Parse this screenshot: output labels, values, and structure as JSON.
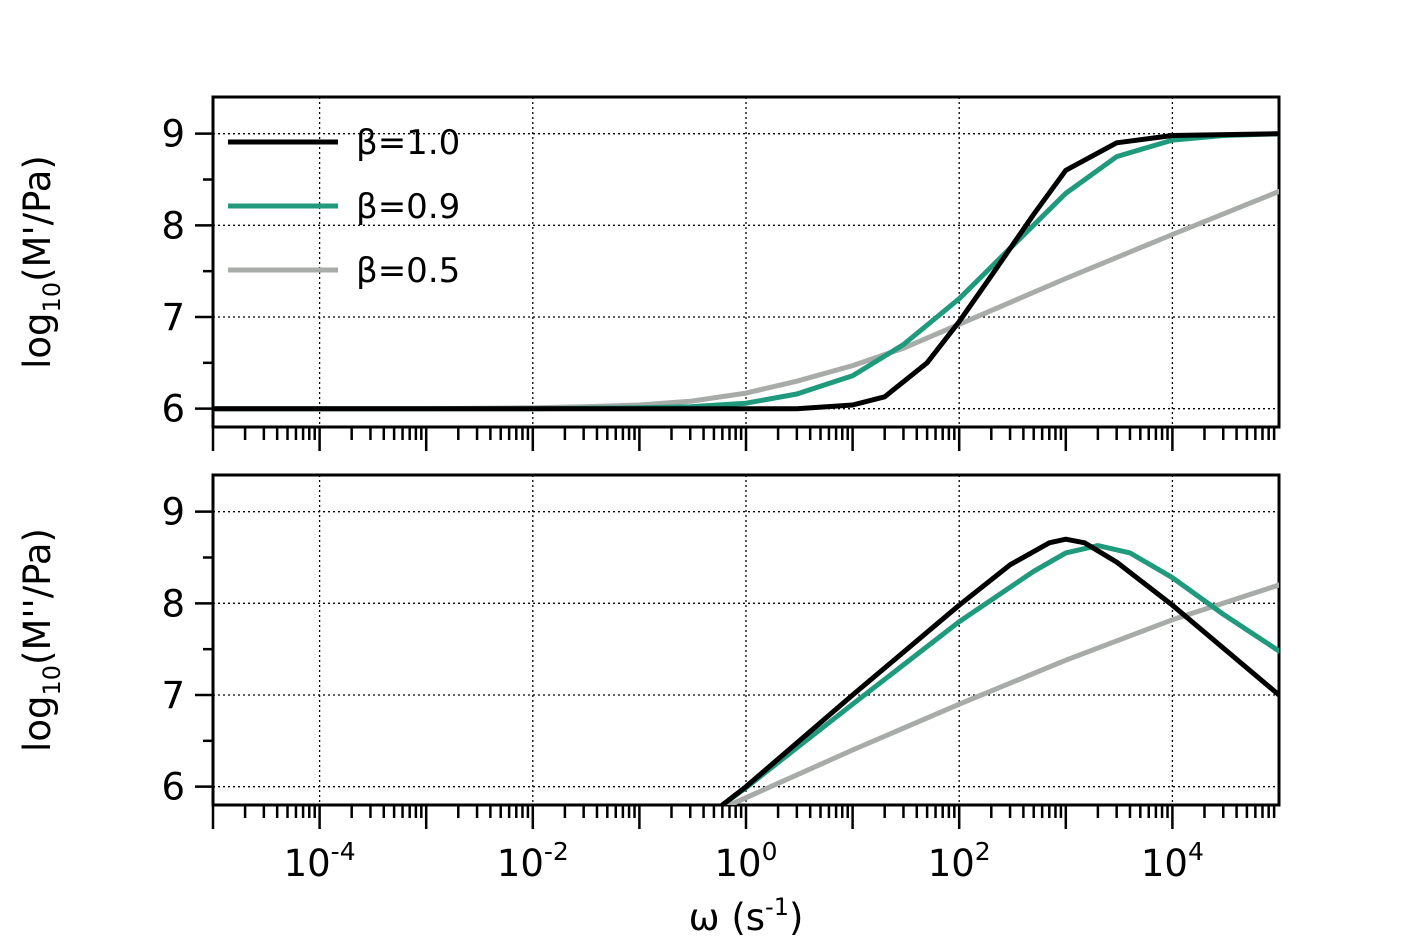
{
  "chart_data": [
    {
      "type": "line",
      "panel": "top",
      "ylabel": {
        "base": "log",
        "sub": "10",
        "rest": "(M'/Pa)"
      },
      "x_scale": "log",
      "xlim": [
        1e-05,
        100000.0
      ],
      "ylim": [
        5.8,
        9.4
      ],
      "y_ticks": [
        6,
        7,
        8,
        9
      ],
      "grid": true,
      "legend_position": "top-left",
      "series": [
        {
          "name": "β=1.0",
          "color": "#000000",
          "x": [
            1e-05,
            0.01,
            0.1,
            1,
            3,
            10,
            20,
            50,
            100,
            200,
            500,
            1000,
            3000,
            10000,
            100000
          ],
          "y": [
            6.0,
            6.0,
            6.0,
            6.0,
            6.0,
            6.04,
            6.13,
            6.5,
            6.95,
            7.45,
            8.12,
            8.6,
            8.9,
            8.98,
            9.0
          ]
        },
        {
          "name": "β=0.9",
          "color": "#1f9a7d",
          "x": [
            1e-05,
            0.01,
            0.1,
            0.3,
            1,
            3,
            10,
            30,
            100,
            300,
            1000,
            3000,
            10000,
            30000,
            100000
          ],
          "y": [
            6.0,
            6.0,
            6.01,
            6.02,
            6.06,
            6.16,
            6.36,
            6.7,
            7.2,
            7.75,
            8.35,
            8.75,
            8.93,
            8.98,
            9.0
          ]
        },
        {
          "name": "β=0.5",
          "color": "#a8aca9",
          "x": [
            1e-05,
            0.001,
            0.01,
            0.03,
            0.1,
            0.3,
            1,
            3,
            10,
            30,
            100,
            1000,
            10000,
            100000
          ],
          "y": [
            6.0,
            6.0,
            6.01,
            6.02,
            6.04,
            6.08,
            6.17,
            6.3,
            6.47,
            6.66,
            6.92,
            7.42,
            7.9,
            8.37
          ]
        }
      ]
    },
    {
      "type": "line",
      "panel": "bottom",
      "xlabel": {
        "base": "ω (s",
        "sup": "-1",
        "rest": ")"
      },
      "ylabel": {
        "base": "log",
        "sub": "10",
        "rest": "(M''/Pa)"
      },
      "x_scale": "log",
      "xlim": [
        1e-05,
        100000.0
      ],
      "ylim": [
        5.8,
        9.4
      ],
      "x_ticks": [
        {
          "value": 0.0001,
          "base": "10",
          "exp": "-4"
        },
        {
          "value": 0.01,
          "base": "10",
          "exp": "-2"
        },
        {
          "value": 1,
          "base": "10",
          "exp": "0"
        },
        {
          "value": 100,
          "base": "10",
          "exp": "2"
        },
        {
          "value": 10000,
          "base": "10",
          "exp": "4"
        }
      ],
      "y_ticks": [
        6,
        7,
        8,
        9
      ],
      "grid": true,
      "series": [
        {
          "name": "β=1.0",
          "color": "#000000",
          "x": [
            0.6,
            1,
            10,
            100,
            300,
            700,
            1000,
            1500,
            3000,
            10000,
            100000
          ],
          "y": [
            5.8,
            6.0,
            7.0,
            7.98,
            8.42,
            8.66,
            8.7,
            8.66,
            8.45,
            7.98,
            7.0
          ]
        },
        {
          "name": "β=0.9",
          "color": "#1f9a7d",
          "x": [
            0.6,
            1,
            10,
            100,
            500,
            1000,
            2000,
            4000,
            10000,
            30000,
            100000
          ],
          "y": [
            5.8,
            5.99,
            6.9,
            7.8,
            8.35,
            8.55,
            8.63,
            8.55,
            8.28,
            7.88,
            7.48
          ]
        },
        {
          "name": "β=0.5",
          "color": "#a8aca9",
          "x": [
            0.7,
            1,
            10,
            100,
            1000,
            10000,
            100000
          ],
          "y": [
            5.8,
            5.88,
            6.4,
            6.9,
            7.38,
            7.82,
            8.2
          ]
        }
      ]
    }
  ]
}
